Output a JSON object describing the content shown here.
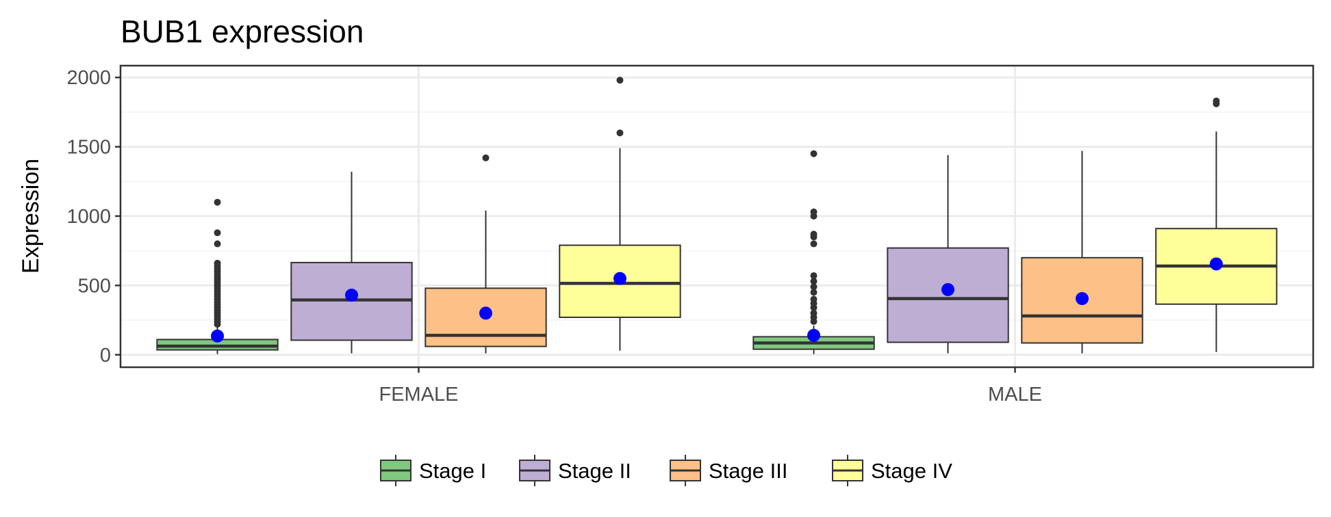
{
  "chart_data": {
    "type": "box",
    "title": "BUB1 expression",
    "xlabel": "",
    "ylabel": "Expression",
    "ylim": [
      -90,
      2085
    ],
    "yticks": [
      0,
      500,
      1000,
      1500,
      2000
    ],
    "categories": [
      "FEMALE",
      "MALE"
    ],
    "grid": true,
    "legend_position": "bottom",
    "mean_marker_color": "#0000ff",
    "series": [
      {
        "name": "Stage I",
        "color": "#7fc97f",
        "boxes": [
          {
            "whisker_low": 5,
            "q1": 35,
            "median": 62,
            "q3": 110,
            "whisker_high": 200,
            "mean": 135,
            "outliers": [
              220,
              240,
              260,
              280,
              300,
              320,
              340,
              360,
              380,
              400,
              420,
              440,
              460,
              480,
              500,
              520,
              540,
              560,
              580,
              600,
              620,
              640,
              660,
              800,
              880,
              1100
            ]
          },
          {
            "whisker_low": 5,
            "q1": 40,
            "median": 85,
            "q3": 130,
            "whisker_high": 210,
            "mean": 140,
            "outliers": [
              240,
              270,
              300,
              340,
              370,
              400,
              450,
              490,
              530,
              570,
              800,
              850,
              870,
              1000,
              1030,
              1450
            ]
          }
        ]
      },
      {
        "name": "Stage II",
        "color": "#beaed4",
        "boxes": [
          {
            "whisker_low": 10,
            "q1": 105,
            "median": 395,
            "q3": 665,
            "whisker_high": 1320,
            "mean": 430,
            "outliers": []
          },
          {
            "whisker_low": 10,
            "q1": 90,
            "median": 405,
            "q3": 770,
            "whisker_high": 1440,
            "mean": 470,
            "outliers": []
          }
        ]
      },
      {
        "name": "Stage III",
        "color": "#fdc086",
        "boxes": [
          {
            "whisker_low": 10,
            "q1": 60,
            "median": 140,
            "q3": 480,
            "whisker_high": 1040,
            "mean": 300,
            "outliers": [
              1420
            ]
          },
          {
            "whisker_low": 10,
            "q1": 85,
            "median": 280,
            "q3": 700,
            "whisker_high": 1470,
            "mean": 405,
            "outliers": []
          }
        ]
      },
      {
        "name": "Stage IV",
        "color": "#ffff99",
        "boxes": [
          {
            "whisker_low": 30,
            "q1": 270,
            "median": 515,
            "q3": 790,
            "whisker_high": 1490,
            "mean": 550,
            "outliers": [
              1600,
              1980
            ]
          },
          {
            "whisker_low": 20,
            "q1": 365,
            "median": 640,
            "q3": 910,
            "whisker_high": 1610,
            "mean": 655,
            "outliers": [
              1810,
              1830
            ]
          }
        ]
      }
    ]
  }
}
